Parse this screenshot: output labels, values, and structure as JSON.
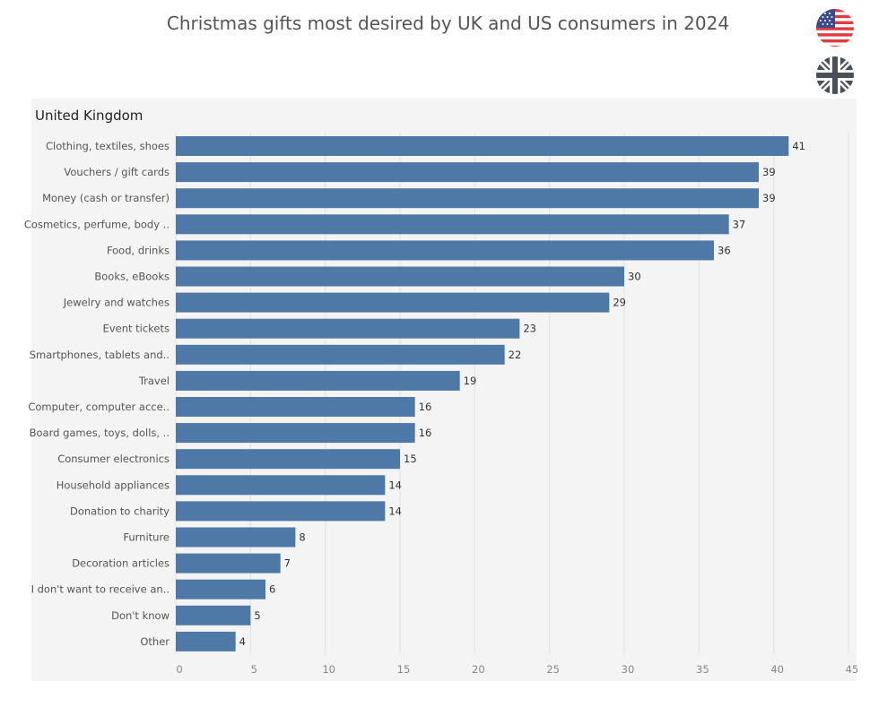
{
  "title": "Christmas gifts most desired by UK and US consumers in 2024",
  "icons": {
    "us": "us-flag-icon",
    "uk": "uk-flag-icon"
  },
  "colors": {
    "bar": "#4e79a7",
    "panel": "#f4f4f4"
  },
  "chart_data": {
    "type": "bar",
    "orientation": "horizontal",
    "title": "United Kingdom",
    "categories": [
      "Clothing, textiles, shoes",
      "Vouchers / gift cards",
      "Money (cash or transfer)",
      "Cosmetics, perfume, body ..",
      "Food, drinks",
      "Books, eBooks",
      "Jewelry and watches",
      "Event tickets",
      "Smartphones, tablets and..",
      "Travel",
      "Computer, computer acce..",
      "Board games, toys, dolls, ..",
      "Consumer electronics",
      "Household appliances",
      "Donation to charity",
      "Furniture",
      "Decoration articles",
      "I don't want to receive an..",
      "Don't know",
      "Other"
    ],
    "values": [
      41,
      39,
      39,
      37,
      36,
      30,
      29,
      23,
      22,
      19,
      16,
      16,
      15,
      14,
      14,
      8,
      7,
      6,
      5,
      4
    ],
    "xlim": [
      0,
      45
    ],
    "xticks": [
      0,
      5,
      10,
      15,
      20,
      25,
      30,
      35,
      40,
      45
    ],
    "grid": true,
    "xlabel": "",
    "ylabel": ""
  }
}
